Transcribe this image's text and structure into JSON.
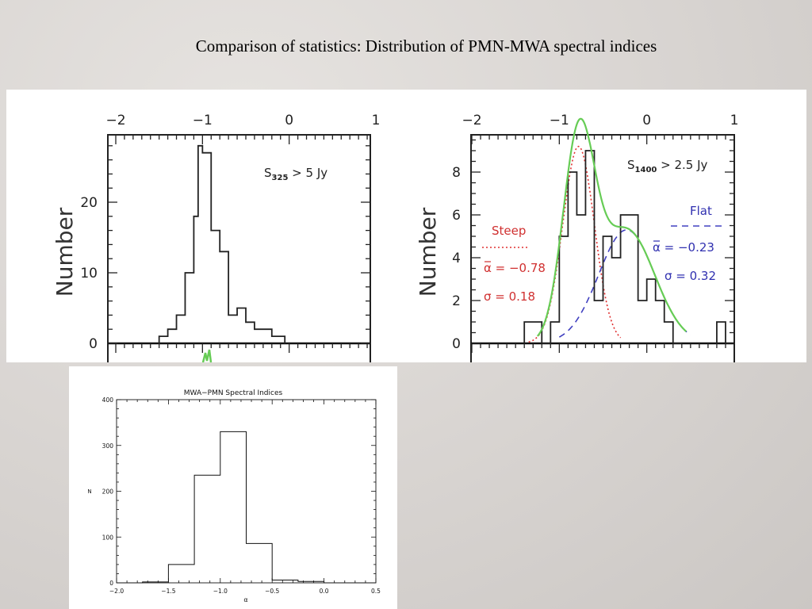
{
  "slide": {
    "title": "Comparison of statistics:  Distribution of PMN-MWA spectral indices"
  },
  "chart_data": [
    {
      "type": "bar",
      "name": "left-histogram",
      "ylabel": "Number",
      "xlim": [
        -2,
        1
      ],
      "ylim": [
        0,
        30
      ],
      "x_ticks": [
        "−2",
        "−1",
        "0",
        "1"
      ],
      "y_ticks": [
        "0",
        "10",
        "20"
      ],
      "annotation": {
        "prefix": "S",
        "sub": "325",
        "suffix": " > 5 Jy"
      },
      "bin_edges": [
        -1.5,
        -1.4,
        -1.3,
        -1.2,
        -1.1,
        -1.05,
        -1.0,
        -0.9,
        -0.8,
        -0.7,
        -0.6,
        -0.5,
        -0.4,
        -0.3,
        -0.2,
        -0.1,
        -0.05
      ],
      "values": [
        1,
        2,
        4,
        10,
        18,
        28,
        27,
        16,
        13,
        4,
        5,
        3,
        2,
        2,
        1,
        1
      ]
    },
    {
      "type": "bar",
      "name": "right-histogram",
      "ylabel": "Number",
      "xlim": [
        -2,
        1
      ],
      "ylim": [
        0,
        9.5
      ],
      "x_ticks": [
        "−2",
        "−1",
        "0",
        "1"
      ],
      "y_ticks": [
        "0",
        "2",
        "4",
        "6",
        "8"
      ],
      "annotation": {
        "prefix": "S",
        "sub": "1400",
        "suffix": " > 2.5 Jy"
      },
      "bin_edges": [
        -1.4,
        -1.2,
        -1.1,
        -1.0,
        -0.9,
        -0.8,
        -0.7,
        -0.6,
        -0.5,
        -0.4,
        -0.3,
        -0.2,
        -0.1,
        0.0,
        0.1,
        0.2,
        0.3,
        0.4
      ],
      "values": [
        1,
        0,
        1,
        5,
        8,
        6,
        9,
        2,
        5,
        4,
        6,
        6,
        2,
        3,
        2,
        1,
        0
      ],
      "extra_bins": [
        {
          "x0": 0.8,
          "x1": 0.9,
          "y": 1
        }
      ],
      "components": [
        {
          "name": "Steep",
          "color": "#e03030",
          "style": "dotted",
          "mean_label": "α = −0.78",
          "sigma_label": "σ = 0.18",
          "mean": -0.78,
          "sigma": 0.18,
          "amp": 9.2
        },
        {
          "name": "Flat",
          "color": "#4040c0",
          "style": "dashed",
          "mean_label": "α = −0.23",
          "sigma_label": "σ = 0.32",
          "mean": -0.23,
          "sigma": 0.32,
          "amp": 5.3
        }
      ],
      "sum_color": "#66cc55"
    },
    {
      "type": "bar",
      "name": "bottom-histogram",
      "title": "MWA−PMN Spectral Indices",
      "xlabel": "α",
      "ylabel": "N",
      "xlim": [
        -2.0,
        0.5
      ],
      "ylim": [
        0,
        400
      ],
      "x_ticks": [
        "−2.0",
        "−1.5",
        "−1.0",
        "−0.5",
        "0.0",
        "0.5"
      ],
      "y_ticks": [
        "0",
        "100",
        "200",
        "300",
        "400"
      ],
      "bin_edges": [
        -1.75,
        -1.5,
        -1.25,
        -1.0,
        -0.75,
        -0.5,
        -0.25,
        0.0
      ],
      "values": [
        2,
        40,
        235,
        330,
        86,
        6,
        3
      ]
    }
  ]
}
